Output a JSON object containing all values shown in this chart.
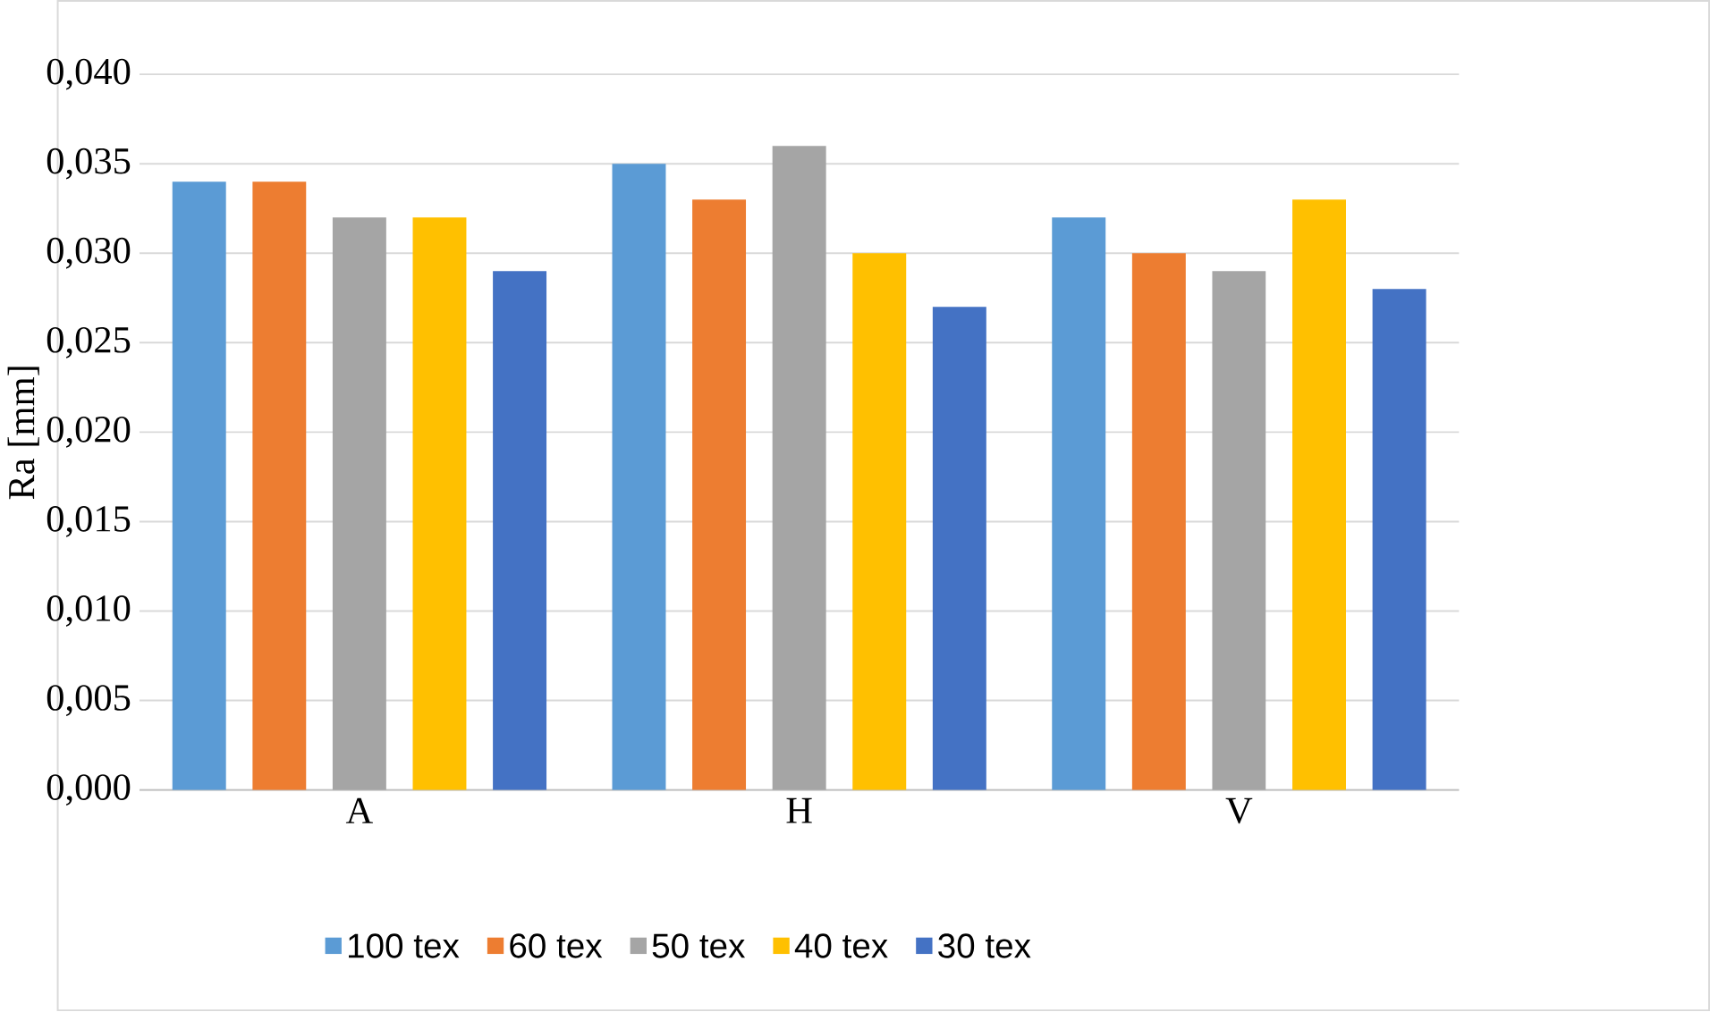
{
  "chart_data": {
    "type": "bar",
    "ylabel": "Ra [mm]",
    "categories": [
      "A",
      "H",
      "V"
    ],
    "series": [
      {
        "name": "100 tex",
        "color": "#5b9bd5",
        "values": [
          0.034,
          0.035,
          0.032
        ]
      },
      {
        "name": "60 tex",
        "color": "#ed7d31",
        "values": [
          0.034,
          0.033,
          0.03
        ]
      },
      {
        "name": "50 tex",
        "color": "#a5a5a5",
        "values": [
          0.032,
          0.036,
          0.029
        ]
      },
      {
        "name": "40 tex",
        "color": "#ffc000",
        "values": [
          0.032,
          0.03,
          0.033
        ]
      },
      {
        "name": "30 tex",
        "color": "#4472c4",
        "values": [
          0.029,
          0.027,
          0.028
        ]
      }
    ],
    "ylim": [
      0,
      0.04
    ],
    "yticks": [
      {
        "value": 0,
        "label": "0,000"
      },
      {
        "value": 0.005,
        "label": "0,005"
      },
      {
        "value": 0.01,
        "label": "0,010"
      },
      {
        "value": 0.015,
        "label": "0,015"
      },
      {
        "value": 0.02,
        "label": "0,020"
      },
      {
        "value": 0.025,
        "label": "0,025"
      },
      {
        "value": 0.03,
        "label": "0,030"
      },
      {
        "value": 0.035,
        "label": "0,035"
      },
      {
        "value": 0.04,
        "label": "0,040"
      }
    ],
    "grid": "y",
    "legend": "bottom"
  }
}
